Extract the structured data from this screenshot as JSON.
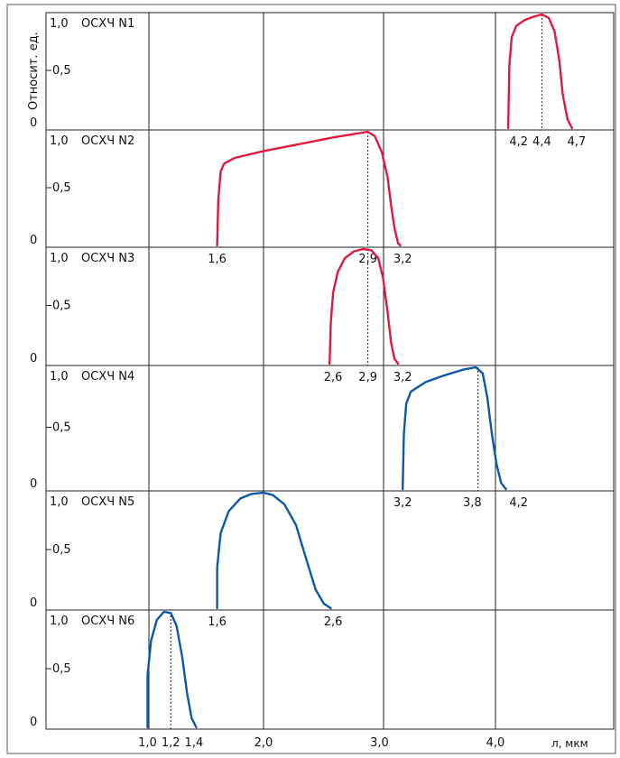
{
  "chart_data": {
    "type": "line",
    "ylabel": "Относит. ед.",
    "xlabel": "л, мкм",
    "x_ticks": [
      "1,0",
      "1,2",
      "1,4",
      "2,0",
      "3,0",
      "4,0"
    ],
    "x_tick_values": [
      1.0,
      1.2,
      1.4,
      2.0,
      3.0,
      4.0
    ],
    "colors": {
      "red": "#e2183f",
      "blue": "#0b5aa5"
    },
    "panels": [
      {
        "name": "ОСХЧ N1",
        "color": "#e2183f",
        "y_ticks": [
          "1,0",
          "0,5",
          "0"
        ],
        "tick_labels": [
          "4,2",
          "4,4",
          "4,7"
        ],
        "tick_label_x": [
          4.2,
          4.4,
          4.7
        ],
        "peak_x": 4.4,
        "points": [
          [
            4.11,
            0
          ],
          [
            4.12,
            0.55
          ],
          [
            4.14,
            0.8
          ],
          [
            4.18,
            0.9
          ],
          [
            4.25,
            0.95
          ],
          [
            4.33,
            0.98
          ],
          [
            4.4,
            1.0
          ],
          [
            4.46,
            0.97
          ],
          [
            4.51,
            0.85
          ],
          [
            4.55,
            0.6
          ],
          [
            4.58,
            0.3
          ],
          [
            4.62,
            0.08
          ],
          [
            4.66,
            0
          ]
        ]
      },
      {
        "name": "ОСХЧ N2",
        "color": "#e2183f",
        "y_ticks": [
          "1,0",
          "0,5",
          "0"
        ],
        "tick_labels": [
          "1,6",
          "2,9",
          "3,2"
        ],
        "tick_label_x": [
          1.6,
          2.9,
          3.2
        ],
        "peak_x": 2.9,
        "points": [
          [
            1.6,
            0
          ],
          [
            1.61,
            0.4
          ],
          [
            1.63,
            0.65
          ],
          [
            1.66,
            0.72
          ],
          [
            1.75,
            0.77
          ],
          [
            2.0,
            0.83
          ],
          [
            2.3,
            0.89
          ],
          [
            2.6,
            0.95
          ],
          [
            2.9,
            1.0
          ],
          [
            2.96,
            0.96
          ],
          [
            3.02,
            0.82
          ],
          [
            3.07,
            0.6
          ],
          [
            3.1,
            0.35
          ],
          [
            3.13,
            0.15
          ],
          [
            3.16,
            0.02
          ],
          [
            3.18,
            0
          ]
        ]
      },
      {
        "name": "ОСХЧ N3",
        "color": "#e2183f",
        "y_ticks": [
          "1,0",
          "0,5",
          "0"
        ],
        "tick_labels": [
          "2,6",
          "2,9",
          "3,2"
        ],
        "tick_label_x": [
          2.6,
          2.9,
          3.2
        ],
        "peak_x": 2.9,
        "points": [
          [
            2.57,
            0
          ],
          [
            2.58,
            0.35
          ],
          [
            2.6,
            0.62
          ],
          [
            2.64,
            0.8
          ],
          [
            2.7,
            0.92
          ],
          [
            2.78,
            0.98
          ],
          [
            2.86,
            1.0
          ],
          [
            2.93,
            0.99
          ],
          [
            2.99,
            0.92
          ],
          [
            3.03,
            0.75
          ],
          [
            3.07,
            0.45
          ],
          [
            3.1,
            0.18
          ],
          [
            3.13,
            0.04
          ],
          [
            3.16,
            0
          ]
        ]
      },
      {
        "name": "ОСХЧ N4",
        "color": "#0b5aa5",
        "y_ticks": [
          "1,0",
          "0,5",
          "0"
        ],
        "tick_labels": [
          "3,2",
          "3,8",
          "4,2"
        ],
        "tick_label_x": [
          3.2,
          3.8,
          4.2
        ],
        "peak_x": 3.85,
        "points": [
          [
            3.2,
            0
          ],
          [
            3.21,
            0.45
          ],
          [
            3.23,
            0.7
          ],
          [
            3.27,
            0.8
          ],
          [
            3.4,
            0.88
          ],
          [
            3.55,
            0.93
          ],
          [
            3.72,
            0.98
          ],
          [
            3.83,
            1.0
          ],
          [
            3.89,
            0.95
          ],
          [
            3.93,
            0.75
          ],
          [
            3.97,
            0.45
          ],
          [
            4.01,
            0.2
          ],
          [
            4.05,
            0.05
          ],
          [
            4.09,
            0
          ]
        ]
      },
      {
        "name": "ОСХЧ N5",
        "color": "#0b5aa5",
        "y_ticks": [
          "1,0",
          "0,5",
          "0"
        ],
        "tick_labels": [
          "1,6",
          "2,6"
        ],
        "tick_label_x": [
          1.6,
          2.6
        ],
        "peak_x": null,
        "points": [
          [
            1.6,
            0
          ],
          [
            1.6,
            0.35
          ],
          [
            1.63,
            0.65
          ],
          [
            1.7,
            0.84
          ],
          [
            1.8,
            0.95
          ],
          [
            1.9,
            0.99
          ],
          [
            2.0,
            1.0
          ],
          [
            2.08,
            0.98
          ],
          [
            2.18,
            0.9
          ],
          [
            2.28,
            0.72
          ],
          [
            2.37,
            0.42
          ],
          [
            2.45,
            0.16
          ],
          [
            2.52,
            0.04
          ],
          [
            2.58,
            0
          ]
        ]
      },
      {
        "name": "ОСХЧ N6",
        "color": "#0b5aa5",
        "y_ticks": [
          "1,0",
          "0,5",
          "0"
        ],
        "tick_labels": [],
        "tick_label_x": [],
        "peak_x": 1.2,
        "points": [
          [
            1.0,
            0
          ],
          [
            1.0,
            0.45
          ],
          [
            1.03,
            0.75
          ],
          [
            1.08,
            0.93
          ],
          [
            1.14,
            1.0
          ],
          [
            1.2,
            0.99
          ],
          [
            1.25,
            0.88
          ],
          [
            1.3,
            0.6
          ],
          [
            1.34,
            0.3
          ],
          [
            1.38,
            0.08
          ],
          [
            1.42,
            0
          ]
        ]
      }
    ]
  }
}
